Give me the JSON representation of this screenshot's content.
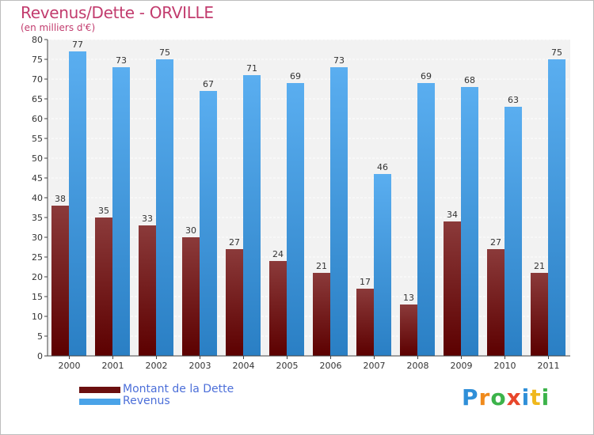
{
  "title": "Revenus/Dette - ORVILLE",
  "subtitle": "(en milliers d'€)",
  "chart_data": {
    "type": "bar",
    "title": "Revenus/Dette - ORVILLE",
    "ylabel": "(en milliers d'€)",
    "xlabel": "",
    "ylim": [
      0,
      80
    ],
    "ytick_step": 5,
    "grid": true,
    "categories": [
      "2000",
      "2001",
      "2002",
      "2003",
      "2004",
      "2005",
      "2006",
      "2007",
      "2008",
      "2009",
      "2010",
      "2011"
    ],
    "series": [
      {
        "name": "Montant de la Dette",
        "values": [
          38,
          35,
          33,
          30,
          27,
          24,
          21,
          17,
          13,
          34,
          27,
          21
        ],
        "color_top": "#8b3a3a",
        "color_bottom": "#5c0000"
      },
      {
        "name": "Revenus",
        "values": [
          77,
          73,
          75,
          67,
          71,
          69,
          73,
          46,
          69,
          68,
          63,
          75
        ],
        "color_top": "#5aaef0",
        "color_bottom": "#2a7fc4"
      }
    ]
  },
  "legend": [
    {
      "label": "Montant de la Dette",
      "color": "#6b0f0f"
    },
    {
      "label": "Revenus",
      "color": "#4aa3e8"
    }
  ],
  "logo": {
    "letters": [
      "P",
      "r",
      "o",
      "x",
      "i",
      "t",
      "i"
    ],
    "colors": [
      "#2f8fd8",
      "#f08a1c",
      "#3cb34a",
      "#e8462b",
      "#2f8fd8",
      "#f0b81c",
      "#3cb34a"
    ]
  }
}
